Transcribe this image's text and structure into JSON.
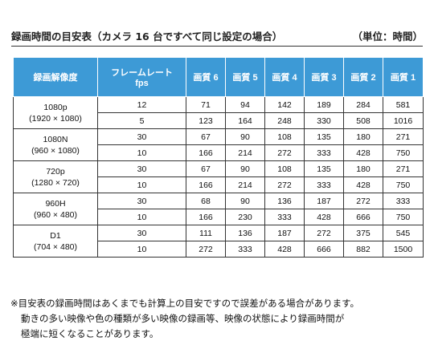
{
  "title": "録画時間の目安表（カメラ 16 台ですべて同じ設定の場合）",
  "unit": "（単位：時間）",
  "table": {
    "headers": {
      "resolution": "録画解像度",
      "fps_line1": "フレームレート",
      "fps_line2": "fps",
      "quality": [
        "画質 6",
        "画質 5",
        "画質 4",
        "画質 3",
        "画質 2",
        "画質 1"
      ]
    },
    "groups": [
      {
        "name": "1080p",
        "size": "(1920 × 1080)",
        "rows": [
          {
            "fps": "12",
            "values": [
              "71",
              "94",
              "142",
              "189",
              "284",
              "581"
            ]
          },
          {
            "fps": "5",
            "values": [
              "123",
              "164",
              "248",
              "330",
              "508",
              "1016"
            ]
          }
        ]
      },
      {
        "name": "1080N",
        "size": "(960 × 1080)",
        "rows": [
          {
            "fps": "30",
            "values": [
              "67",
              "90",
              "108",
              "135",
              "180",
              "271"
            ]
          },
          {
            "fps": "10",
            "values": [
              "166",
              "214",
              "272",
              "333",
              "428",
              "750"
            ]
          }
        ]
      },
      {
        "name": "720p",
        "size": "(1280 × 720)",
        "rows": [
          {
            "fps": "30",
            "values": [
              "67",
              "90",
              "108",
              "135",
              "180",
              "271"
            ]
          },
          {
            "fps": "10",
            "values": [
              "166",
              "214",
              "272",
              "333",
              "428",
              "750"
            ]
          }
        ]
      },
      {
        "name": "960H",
        "size": "(960 × 480)",
        "rows": [
          {
            "fps": "30",
            "values": [
              "68",
              "90",
              "136",
              "187",
              "272",
              "333"
            ]
          },
          {
            "fps": "10",
            "values": [
              "166",
              "230",
              "333",
              "428",
              "666",
              "750"
            ]
          }
        ]
      },
      {
        "name": "D1",
        "size": "(704 × 480)",
        "rows": [
          {
            "fps": "30",
            "values": [
              "111",
              "136",
              "187",
              "272",
              "375",
              "545"
            ]
          },
          {
            "fps": "10",
            "values": [
              "272",
              "333",
              "428",
              "666",
              "882",
              "1500"
            ]
          }
        ]
      }
    ]
  },
  "note": {
    "line1": "※目安表の録画時間はあくまでも計算上の目安ですので誤差がある場合があります。",
    "line2": "動きの多い映像や色の種類が多い映像の録画等、映像の状態により録画時間が",
    "line3": "極端に短くなることがあります。"
  },
  "colors": {
    "header_bg": "#3d9ad6",
    "header_text": "#ffffff",
    "border": "#333333"
  }
}
